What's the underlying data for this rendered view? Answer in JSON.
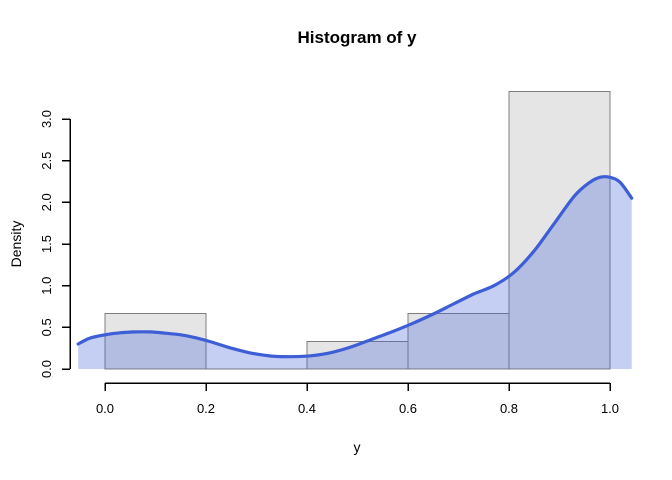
{
  "chart_data": {
    "type": "bar",
    "subtype": "histogram-with-density-overlay",
    "title": "Histogram of y",
    "xlabel": "y",
    "ylabel": "Density",
    "grid": false,
    "legend": null,
    "background": "#ffffff",
    "axis_color": "#000000",
    "xlim": [
      -0.07,
      1.07
    ],
    "ylim": [
      0,
      3.47
    ],
    "x_ticks": [
      {
        "value": 0.0,
        "label": "0.0"
      },
      {
        "value": 0.2,
        "label": "0.2"
      },
      {
        "value": 0.4,
        "label": "0.4"
      },
      {
        "value": 0.6,
        "label": "0.6"
      },
      {
        "value": 0.8,
        "label": "0.8"
      },
      {
        "value": 1.0,
        "label": "1.0"
      }
    ],
    "y_ticks": [
      {
        "value": 0.0,
        "label": "0.0"
      },
      {
        "value": 0.5,
        "label": "0.5"
      },
      {
        "value": 1.0,
        "label": "1.0"
      },
      {
        "value": 1.5,
        "label": "1.5"
      },
      {
        "value": 2.0,
        "label": "2.0"
      },
      {
        "value": 2.5,
        "label": "2.5"
      },
      {
        "value": 3.0,
        "label": "3.0"
      }
    ],
    "series": [
      {
        "name": "histogram",
        "type": "histogram-bars",
        "bin_breaks": [
          0.0,
          0.2,
          0.4,
          0.6,
          0.8,
          1.0
        ],
        "bin_densities": [
          0.667,
          0.0,
          0.333,
          0.667,
          3.333
        ],
        "bar_fill": "#e5e5e5",
        "bar_border": "#7f7f7f"
      },
      {
        "name": "kernel-density-estimate",
        "type": "area-line",
        "line_color": "#3e5ed6",
        "area_fill": "rgba(62,94,214,0.30)",
        "x": [
          -0.053,
          -0.03,
          0.0,
          0.03,
          0.06,
          0.09,
          0.12,
          0.15,
          0.18,
          0.21,
          0.25,
          0.29,
          0.33,
          0.37,
          0.41,
          0.45,
          0.49,
          0.53,
          0.57,
          0.61,
          0.65,
          0.69,
          0.73,
          0.77,
          0.81,
          0.85,
          0.89,
          0.93,
          0.96,
          0.98,
          1.0,
          1.02,
          1.043
        ],
        "y": [
          0.3,
          0.37,
          0.41,
          0.435,
          0.445,
          0.445,
          0.43,
          0.41,
          0.375,
          0.325,
          0.25,
          0.19,
          0.155,
          0.148,
          0.16,
          0.2,
          0.27,
          0.36,
          0.45,
          0.55,
          0.66,
          0.78,
          0.9,
          1.0,
          1.16,
          1.42,
          1.75,
          2.08,
          2.24,
          2.3,
          2.3,
          2.24,
          2.05
        ]
      }
    ]
  }
}
